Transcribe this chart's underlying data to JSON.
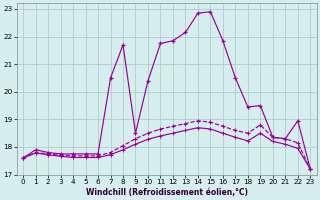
{
  "bg_color": "#d6eeee",
  "grid_color": "#b0cccc",
  "line_color": "#990099",
  "xlim": [
    -0.5,
    23.5
  ],
  "ylim": [
    17.0,
    23.2
  ],
  "yticks": [
    17,
    18,
    19,
    20,
    21,
    22,
    23
  ],
  "xticks": [
    0,
    1,
    2,
    3,
    4,
    5,
    6,
    7,
    8,
    9,
    10,
    11,
    12,
    13,
    14,
    15,
    16,
    17,
    18,
    19,
    20,
    21,
    22,
    23
  ],
  "xlabel": "Windchill (Refroidissement éolien,°C)",
  "c1_x": [
    0,
    1,
    2,
    3,
    4,
    5,
    6,
    7,
    8,
    9,
    10,
    11,
    12,
    13,
    14,
    15,
    16,
    17,
    18,
    19,
    20,
    21,
    22,
    23
  ],
  "c1_y": [
    17.6,
    17.9,
    17.8,
    17.75,
    17.75,
    17.75,
    17.75,
    20.5,
    21.7,
    18.5,
    20.4,
    21.75,
    21.85,
    22.15,
    22.85,
    22.9,
    21.85,
    20.5,
    19.45,
    19.5,
    18.35,
    18.3,
    18.95,
    17.2
  ],
  "c2_x": [
    0,
    1,
    2,
    3,
    4,
    5,
    6,
    7,
    8,
    9,
    10,
    11,
    12,
    13,
    14,
    15,
    16,
    17,
    18,
    19,
    20,
    21,
    22,
    23
  ],
  "c2_y": [
    17.6,
    17.8,
    17.75,
    17.7,
    17.68,
    17.68,
    17.68,
    17.8,
    18.05,
    18.3,
    18.5,
    18.65,
    18.75,
    18.85,
    18.95,
    18.9,
    18.75,
    18.6,
    18.5,
    18.8,
    18.35,
    18.3,
    18.15,
    17.2
  ],
  "c3_x": [
    0,
    1,
    2,
    3,
    4,
    5,
    6,
    7,
    8,
    9,
    10,
    11,
    12,
    13,
    14,
    15,
    16,
    17,
    18,
    19,
    20,
    21,
    22,
    23
  ],
  "c3_y": [
    17.6,
    17.78,
    17.72,
    17.66,
    17.62,
    17.62,
    17.62,
    17.72,
    17.9,
    18.1,
    18.28,
    18.4,
    18.5,
    18.6,
    18.7,
    18.65,
    18.5,
    18.35,
    18.22,
    18.5,
    18.2,
    18.1,
    17.95,
    17.2
  ]
}
